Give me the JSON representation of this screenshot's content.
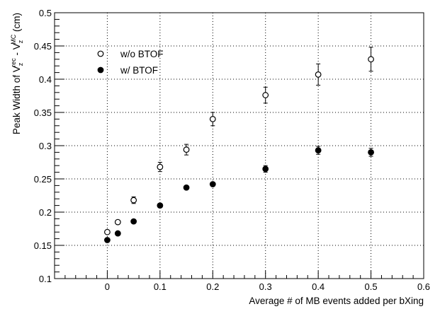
{
  "chart_data": {
    "type": "scatter",
    "title": "",
    "xlabel": "Average # of MB events added per bXing",
    "ylabel_parts": {
      "main": "Peak Width of V",
      "sub1": "z",
      "sup1": "rec",
      "minus": " - V",
      "sub2": "z",
      "sup2": "MC",
      "unit": " (cm)"
    },
    "xlim": [
      -0.1,
      0.6
    ],
    "ylim": [
      0.1,
      0.5
    ],
    "xticks": [
      0,
      0.1,
      0.2,
      0.3,
      0.4,
      0.5,
      0.6
    ],
    "xtick_labels": [
      "0",
      "0.1",
      "0.2",
      "0.3",
      "0.4",
      "0.5",
      "0.6"
    ],
    "yticks": [
      0.1,
      0.15,
      0.2,
      0.25,
      0.3,
      0.35,
      0.4,
      0.45,
      0.5
    ],
    "ytick_labels": [
      "0.1",
      "0.15",
      "0.2",
      "0.25",
      "0.3",
      "0.35",
      "0.4",
      "0.45",
      "0.5"
    ],
    "grid": true,
    "legend_position": "top-left",
    "series": [
      {
        "name": "w/o BTOF",
        "marker": "open-circle",
        "x": [
          0,
          0.02,
          0.05,
          0.1,
          0.15,
          0.2,
          0.3,
          0.4,
          0.5
        ],
        "y": [
          0.17,
          0.185,
          0.218,
          0.268,
          0.294,
          0.34,
          0.376,
          0.407,
          0.43
        ],
        "yerr": [
          0.003,
          0.003,
          0.005,
          0.007,
          0.008,
          0.01,
          0.012,
          0.016,
          0.018
        ]
      },
      {
        "name": "w/ BTOF",
        "marker": "filled-circle",
        "x": [
          0,
          0.02,
          0.05,
          0.1,
          0.15,
          0.2,
          0.3,
          0.4,
          0.5
        ],
        "y": [
          0.158,
          0.168,
          0.186,
          0.21,
          0.237,
          0.242,
          0.265,
          0.293,
          0.29
        ],
        "yerr": [
          0.002,
          0.002,
          0.003,
          0.004,
          0.004,
          0.004,
          0.005,
          0.006,
          0.006
        ]
      }
    ],
    "colors": {
      "marker": "#000000",
      "grid": "#000000",
      "axis": "#000000"
    }
  }
}
